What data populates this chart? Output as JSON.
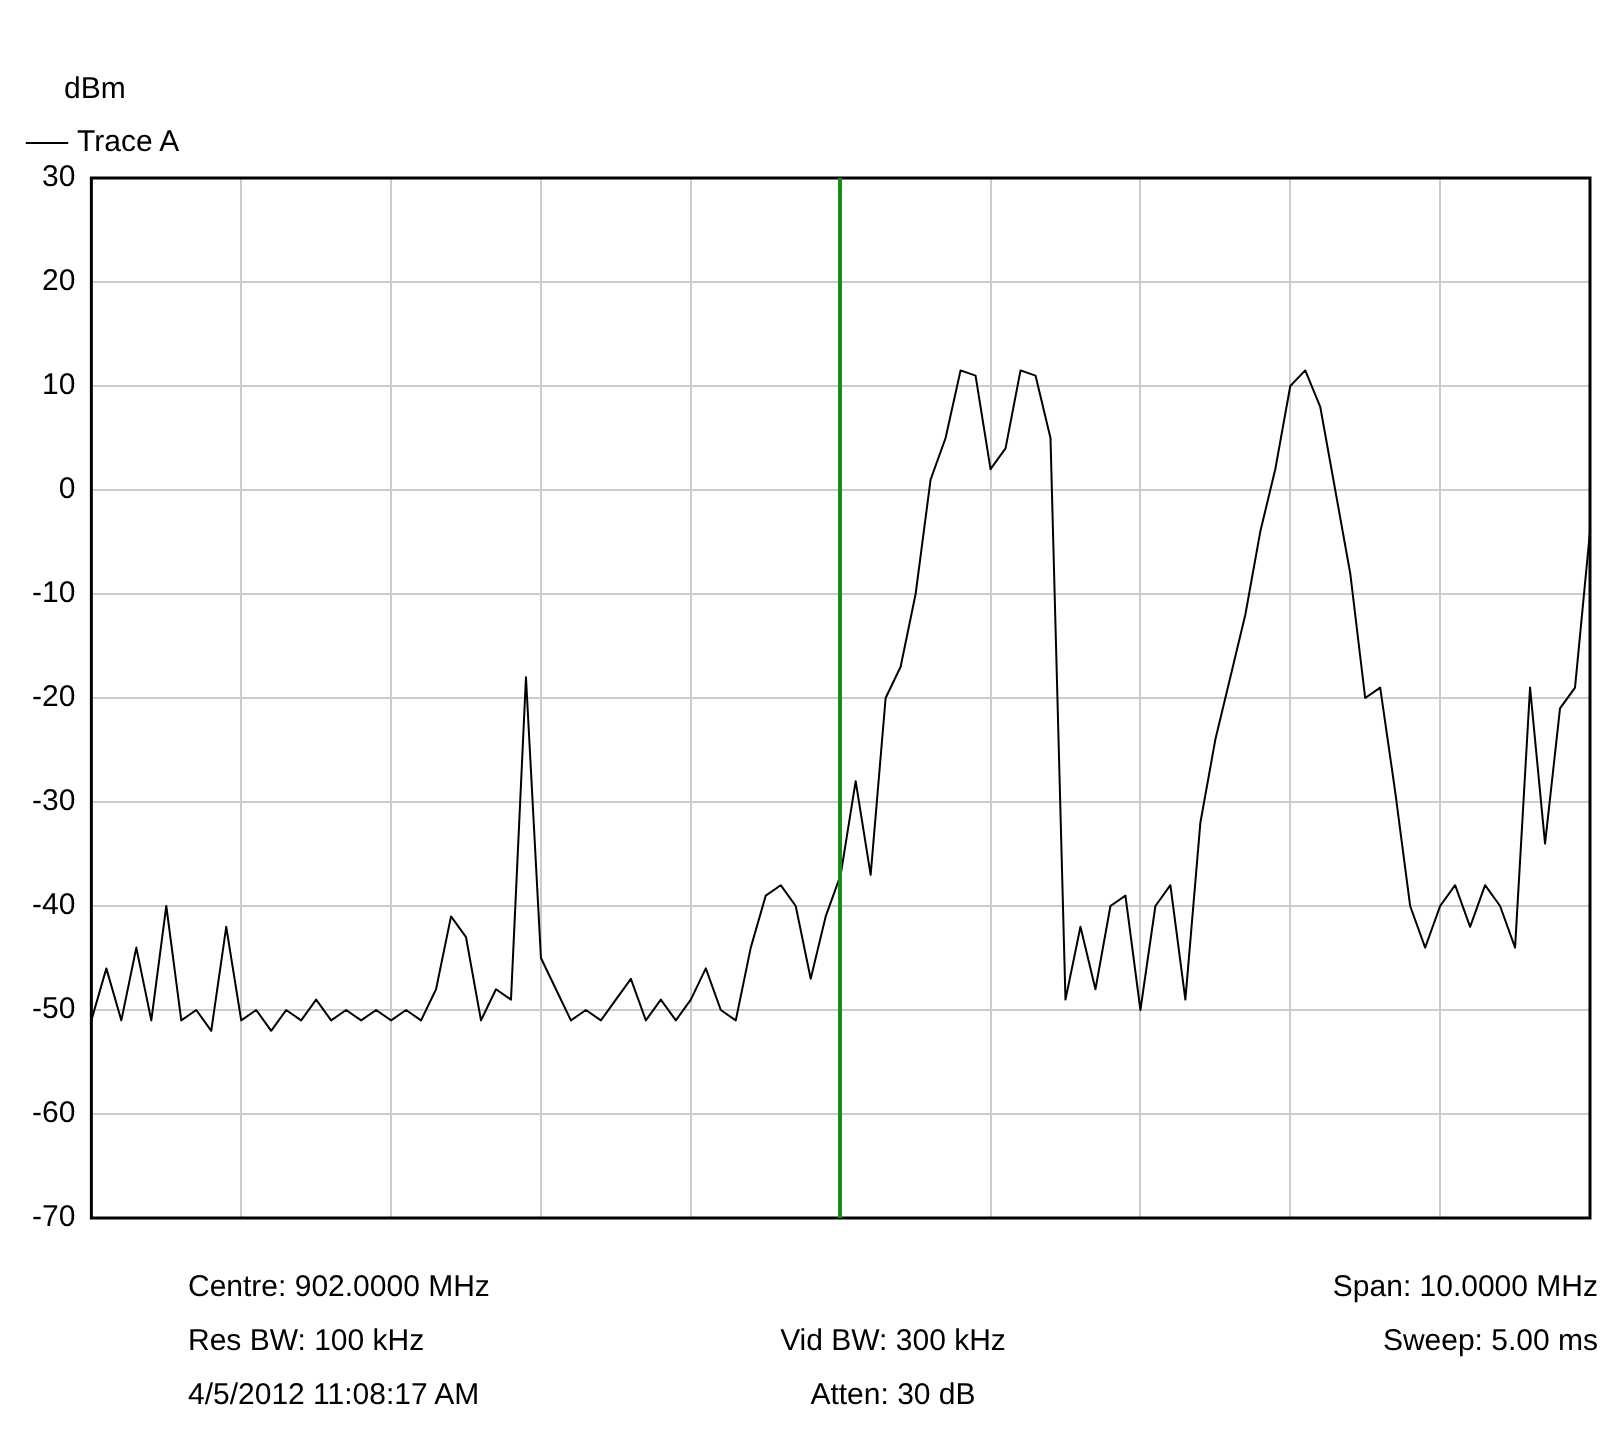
{
  "chart_data": {
    "type": "line",
    "ylabel": "dBm",
    "legend": "top left",
    "grid": true,
    "marker": "none",
    "line_style": "solid",
    "tick_labels": "y",
    "categories": [
      null,
      null,
      null,
      null,
      null,
      null,
      null,
      null,
      null,
      null,
      null,
      null,
      null,
      null,
      null,
      null,
      null,
      null,
      null,
      null,
      null,
      null,
      null,
      null,
      null,
      null,
      null,
      null,
      null,
      null,
      null,
      null,
      null,
      null,
      null,
      null,
      null,
      null,
      null,
      null,
      null,
      null,
      null,
      null,
      null,
      null,
      null,
      null,
      null,
      null,
      null,
      null,
      null,
      null,
      null,
      null,
      null,
      null,
      null,
      null,
      null,
      null,
      null,
      null,
      null,
      null,
      null,
      null,
      null,
      null,
      null,
      null,
      null,
      null,
      null,
      null,
      null,
      null,
      null,
      null,
      null,
      null,
      null,
      null,
      null,
      null,
      null,
      null,
      null,
      null,
      null,
      null,
      null,
      null,
      null,
      null,
      null,
      null,
      null,
      null,
      null
    ],
    "ylim": [
      -70,
      30
    ],
    "yticks": [
      -70,
      -60,
      -50,
      -40,
      -30,
      -20,
      -10,
      0,
      10,
      20,
      30
    ],
    "series": [
      {
        "name": "Trace A",
        "color": "#000000",
        "values": [
          -51,
          -46,
          -51,
          -44,
          -51,
          -40,
          -51,
          -50,
          -52,
          -42,
          -51,
          -50,
          -52,
          -50,
          -51,
          -49,
          -51,
          -50,
          -51,
          -50,
          -51,
          -50,
          -51,
          -48,
          -41,
          -43,
          -51,
          -48,
          -49,
          -18,
          -45,
          -48,
          -51,
          -50,
          -51,
          -49,
          -47,
          -51,
          -49,
          -51,
          -49,
          -46,
          -50,
          -51,
          -44,
          -39,
          -38,
          -40,
          -47,
          -41,
          -37,
          -28,
          -37,
          -20,
          -17,
          -10,
          1,
          5,
          11.5,
          11,
          2,
          4,
          11.5,
          11,
          5,
          -49,
          -42,
          -48,
          -40,
          -39,
          -50,
          -40,
          -38,
          -49,
          -32,
          -24,
          -18,
          -12,
          -4,
          2,
          10,
          11.5,
          8,
          0,
          -8,
          -20,
          -19,
          -29,
          -40,
          -44,
          -40,
          -38,
          -42,
          -38,
          -40,
          -44,
          -19,
          -34,
          -21,
          -19,
          -4
        ]
      }
    ],
    "annotations": [
      "Centre: 902.0000 MHz",
      "Span: 10.0000 MHz",
      "Res BW: 100 kHz",
      "Vid BW: 300 kHz",
      "Sweep: 5.00 ms",
      "4/5/2012 11:08:17 AM",
      "Atten: 30 dB"
    ]
  }
}
